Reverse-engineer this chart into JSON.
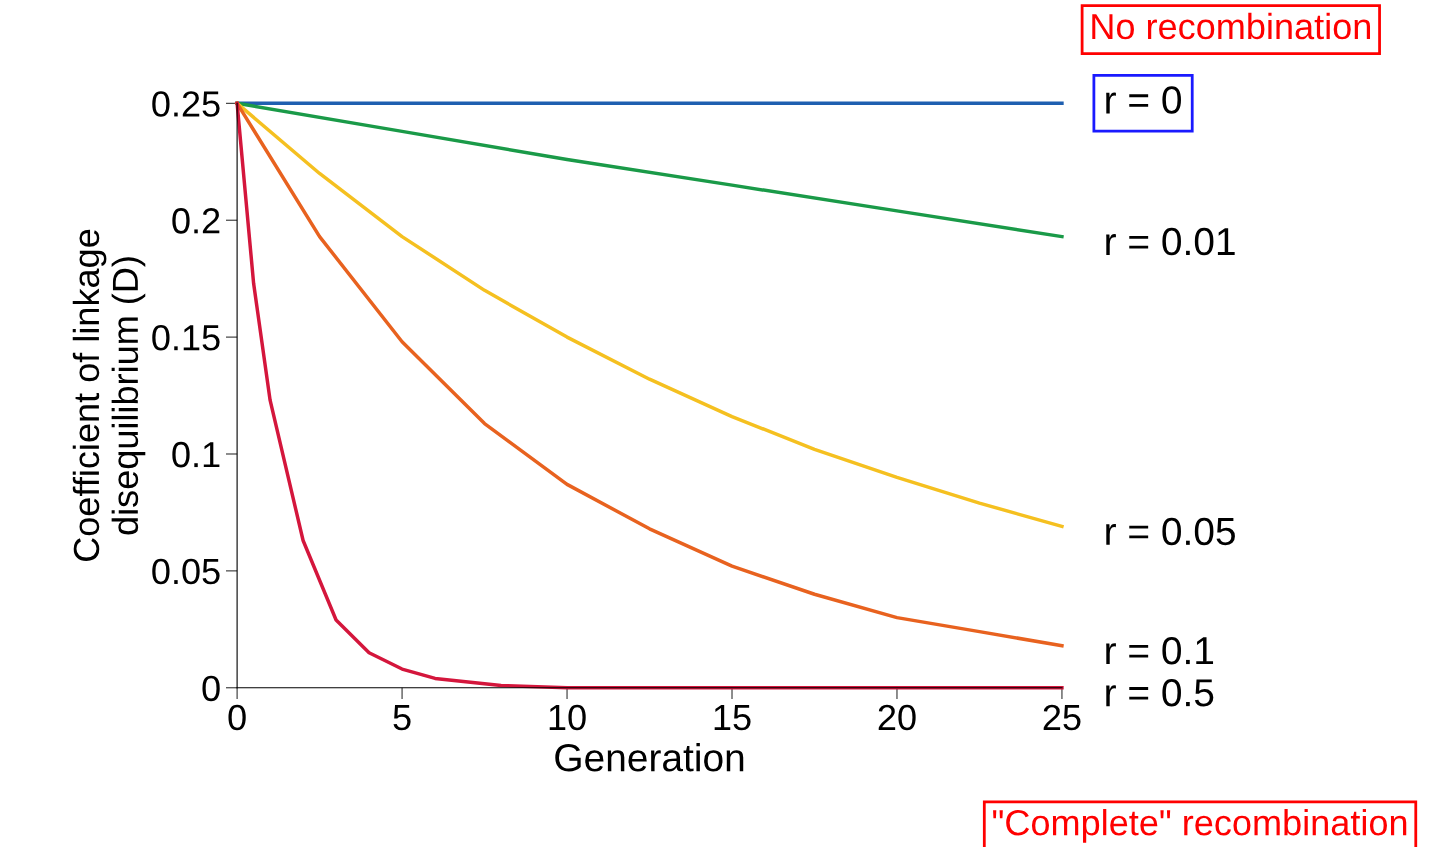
{
  "chart_data": {
    "type": "line",
    "xlabel": "Generation",
    "ylabel": "Coefficient of linkage\ndisequilibrium (D)",
    "xlim": [
      0,
      25
    ],
    "ylim": [
      0,
      0.25
    ],
    "xticks": [
      0,
      5,
      10,
      15,
      20,
      25
    ],
    "yticks": [
      0,
      0.05,
      0.1,
      0.15,
      0.2,
      0.25
    ],
    "grid": false,
    "line_style": "solid",
    "marker": "none",
    "series": [
      {
        "name": "r = 0",
        "color": "#1f5fb0",
        "x": [
          0,
          25
        ],
        "values": [
          0.25,
          0.25
        ]
      },
      {
        "name": "r = 0.01",
        "color": "#1a9a48",
        "x": [
          0,
          5,
          10,
          15,
          20,
          25
        ],
        "values": [
          0.25,
          0.238,
          0.226,
          0.215,
          0.204,
          0.193
        ]
      },
      {
        "name": "r = 0.05",
        "color": "#f5c020",
        "x": [
          0,
          2.5,
          5,
          7.5,
          10,
          12.5,
          15,
          17.5,
          20,
          22.5,
          25
        ],
        "values": [
          0.25,
          0.22,
          0.193,
          0.17,
          0.15,
          0.132,
          0.116,
          0.102,
          0.09,
          0.079,
          0.069
        ]
      },
      {
        "name": "r = 0.1",
        "color": "#e8621f",
        "x": [
          0,
          2.5,
          5,
          7.5,
          10,
          12.5,
          15,
          17.5,
          20,
          22.5,
          25
        ],
        "values": [
          0.25,
          0.193,
          0.148,
          0.113,
          0.087,
          0.068,
          0.052,
          0.04,
          0.03,
          0.024,
          0.018
        ]
      },
      {
        "name": "r = 0.5",
        "color": "#d4163c",
        "x": [
          0,
          0.5,
          1,
          2,
          3,
          4,
          5,
          6,
          8,
          10,
          15,
          20,
          25
        ],
        "values": [
          0.25,
          0.173,
          0.123,
          0.063,
          0.029,
          0.015,
          0.008,
          0.004,
          0.001,
          0,
          0,
          0,
          0
        ]
      }
    ],
    "annotations": [
      "No recombination",
      "\"Complete\" recombination"
    ]
  }
}
